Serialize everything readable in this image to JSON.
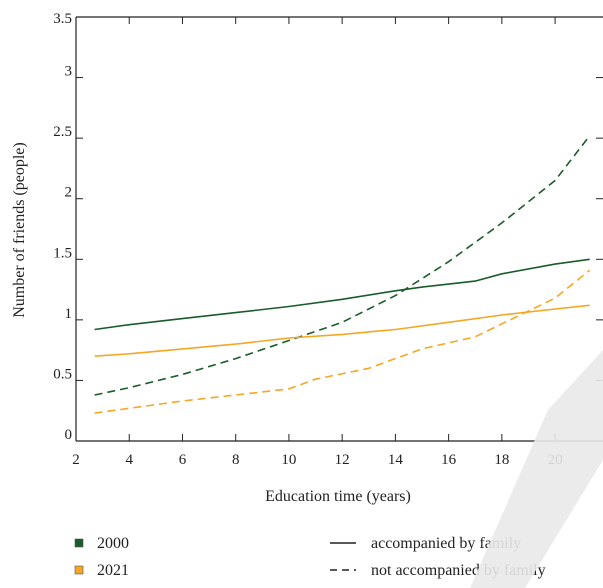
{
  "chart_data": {
    "type": "line",
    "xlabel": "Education time (years)",
    "ylabel": "Number of friends (people)",
    "xlim": [
      2,
      21.8
    ],
    "ylim": [
      0,
      3.5
    ],
    "xticks": [
      2,
      4,
      6,
      8,
      10,
      12,
      14,
      16,
      18,
      20
    ],
    "yticks": [
      0,
      0.5,
      1,
      1.5,
      2,
      2.5,
      3,
      3.5
    ],
    "ytick_labels": [
      "0",
      "0.5",
      "1",
      "1.5",
      "2",
      "2.5",
      "3",
      "3.5"
    ],
    "grid": false,
    "legend": {
      "placement": "bottom",
      "colors": [
        {
          "label": "2000",
          "color": "#1a5c2a"
        },
        {
          "label": "2021",
          "color": "#f5a623"
        }
      ],
      "styles": [
        {
          "label": "accompanied by family",
          "dash": "solid"
        },
        {
          "label": "not accompanied by family",
          "dash": "dashed"
        }
      ]
    },
    "series": [
      {
        "year": "2000",
        "style": "accompanied by family",
        "color": "#1a5c2a",
        "dash": "solid",
        "x": [
          2.7,
          4,
          6,
          8,
          10,
          12,
          14,
          15,
          17,
          18,
          20,
          21.3
        ],
        "y": [
          0.92,
          0.96,
          1.01,
          1.06,
          1.11,
          1.17,
          1.24,
          1.27,
          1.32,
          1.38,
          1.46,
          1.5
        ]
      },
      {
        "year": "2000",
        "style": "not accompanied by family",
        "color": "#1a5c2a",
        "dash": "dashed",
        "x": [
          2.7,
          4,
          6,
          8,
          10,
          12,
          14,
          16,
          18,
          20,
          21.3
        ],
        "y": [
          0.38,
          0.44,
          0.55,
          0.68,
          0.83,
          0.98,
          1.2,
          1.48,
          1.8,
          2.15,
          2.52
        ]
      },
      {
        "year": "2021",
        "style": "accompanied by family",
        "color": "#f5a623",
        "dash": "solid",
        "x": [
          2.7,
          4,
          6,
          8,
          10,
          12,
          14,
          16,
          18,
          20,
          21.3
        ],
        "y": [
          0.7,
          0.72,
          0.76,
          0.8,
          0.85,
          0.88,
          0.92,
          0.98,
          1.04,
          1.09,
          1.12
        ]
      },
      {
        "year": "2021",
        "style": "not accompanied by family",
        "color": "#f5a623",
        "dash": "dashed",
        "x": [
          2.7,
          4,
          6,
          8,
          10,
          11,
          13,
          15,
          17,
          18.5,
          20,
          21.3
        ],
        "y": [
          0.23,
          0.27,
          0.33,
          0.38,
          0.43,
          0.51,
          0.6,
          0.76,
          0.86,
          1.02,
          1.18,
          1.41
        ]
      }
    ]
  }
}
